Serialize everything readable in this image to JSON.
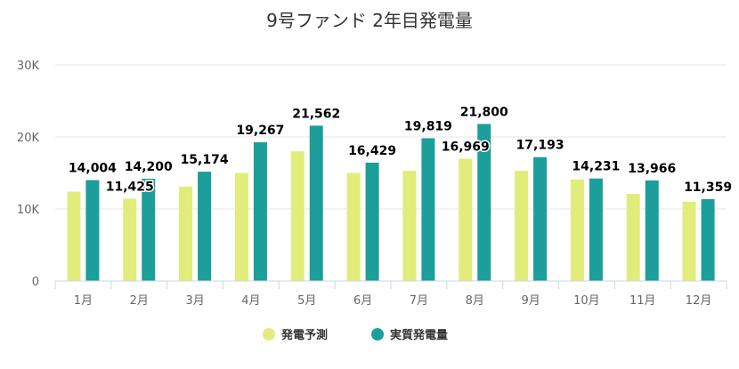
{
  "chart_data": {
    "type": "bar",
    "title": "9号ファンド 2年目発電量",
    "categories": [
      "1月",
      "2月",
      "3月",
      "4月",
      "5月",
      "6月",
      "7月",
      "8月",
      "9月",
      "10月",
      "11月",
      "12月"
    ],
    "series": [
      {
        "name": "発電予測",
        "color": "#e2ec7a",
        "values": [
          12400,
          11425,
          13100,
          15000,
          18000,
          15000,
          15300,
          16969,
          15300,
          14100,
          12100,
          11000
        ]
      },
      {
        "name": "実質発電量",
        "color": "#1c9e9a",
        "values": [
          14004,
          14200,
          15174,
          19267,
          21562,
          16429,
          19819,
          21800,
          17193,
          14231,
          13966,
          11359
        ]
      }
    ],
    "data_labels": [
      {
        "category": "1月",
        "series": "実質発電量",
        "text": "14,004"
      },
      {
        "category": "2月",
        "series": "発電予測",
        "text": "11,425"
      },
      {
        "category": "2月",
        "series": "実質発電量",
        "text": "14,200"
      },
      {
        "category": "3月",
        "series": "実質発電量",
        "text": "15,174"
      },
      {
        "category": "4月",
        "series": "実質発電量",
        "text": "19,267"
      },
      {
        "category": "5月",
        "series": "実質発電量",
        "text": "21,562"
      },
      {
        "category": "6月",
        "series": "実質発電量",
        "text": "16,429"
      },
      {
        "category": "7月",
        "series": "実質発電量",
        "text": "19,819"
      },
      {
        "category": "8月",
        "series": "発電予測",
        "text": "16,969"
      },
      {
        "category": "8月",
        "series": "実質発電量",
        "text": "21,800"
      },
      {
        "category": "9月",
        "series": "実質発電量",
        "text": "17,193"
      },
      {
        "category": "10月",
        "series": "実質発電量",
        "text": "14,231"
      },
      {
        "category": "11月",
        "series": "実質発電量",
        "text": "13,966"
      },
      {
        "category": "12月",
        "series": "実質発電量",
        "text": "11,359"
      }
    ],
    "y_ticks": [
      {
        "value": 0,
        "label": "0"
      },
      {
        "value": 10000,
        "label": "10K"
      },
      {
        "value": 20000,
        "label": "20K"
      },
      {
        "value": 30000,
        "label": "30K"
      }
    ],
    "ylim": [
      0,
      30000
    ],
    "grid": true,
    "legend_position": "bottom-center"
  }
}
